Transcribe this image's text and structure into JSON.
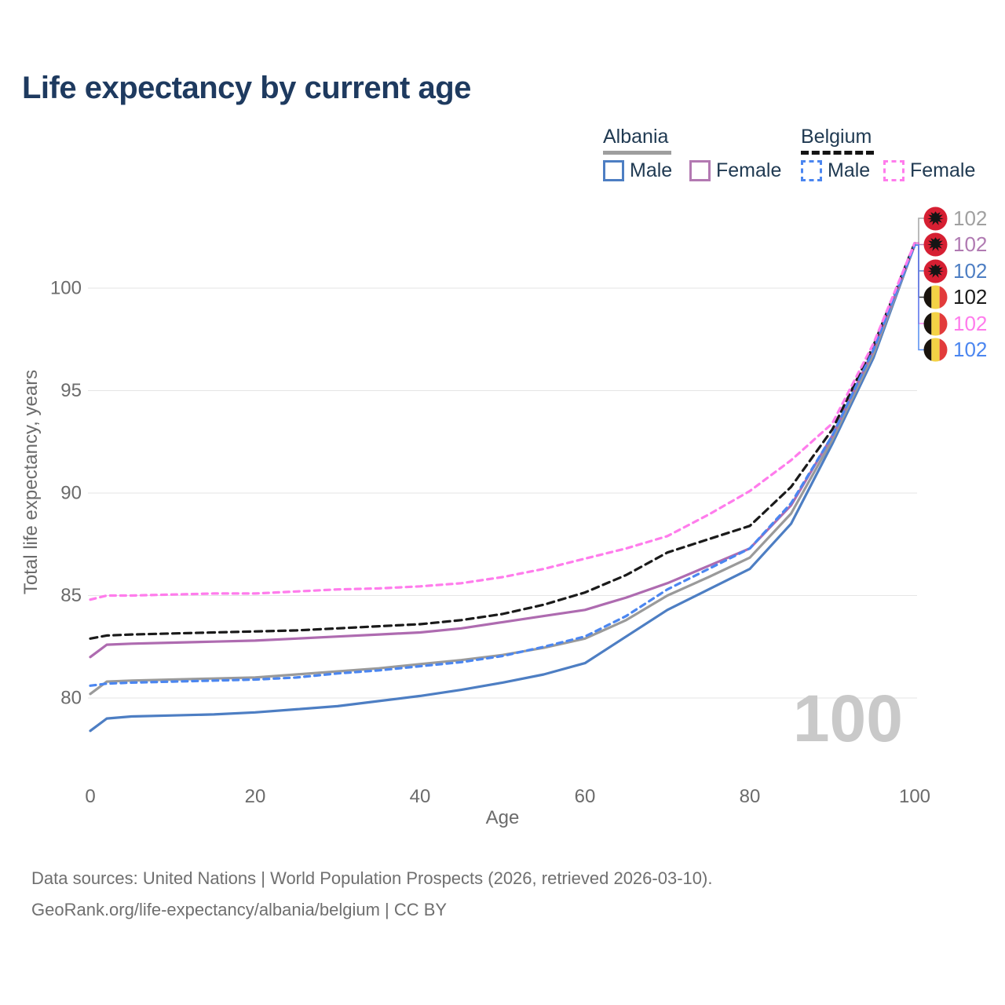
{
  "header": {
    "title": "Life expectancy by current age"
  },
  "legend": {
    "groups": [
      {
        "country": "Albania",
        "line_style": "solid",
        "items": [
          {
            "label": "Male",
            "color": "#4d7ec3"
          },
          {
            "label": "Female",
            "color": "#b379b2"
          }
        ]
      },
      {
        "country": "Belgium",
        "line_style": "dashed",
        "items": [
          {
            "label": "Male",
            "color": "#4b86f0"
          },
          {
            "label": "Female",
            "color": "#ff7cec"
          }
        ]
      }
    ]
  },
  "chart_data": {
    "type": "line",
    "title": "Life expectancy by current age",
    "xlabel": "Age",
    "ylabel": "Total life expectancy, years",
    "xlim": [
      0,
      100
    ],
    "ylim": [
      78,
      103
    ],
    "xticks": [
      0,
      20,
      40,
      60,
      80,
      100
    ],
    "yticks": [
      80,
      85,
      90,
      95,
      100
    ],
    "grid": "horizontal-only",
    "legend_position": "top-right",
    "x": [
      0,
      2,
      5,
      10,
      15,
      20,
      25,
      30,
      35,
      40,
      45,
      50,
      55,
      60,
      65,
      70,
      75,
      80,
      85,
      90,
      95,
      100
    ],
    "series": [
      {
        "name": "Albania Male",
        "country": "Albania",
        "sex": "male",
        "color": "#4d7ec3",
        "dash": "solid",
        "values": [
          78.4,
          79.0,
          79.1,
          79.15,
          79.2,
          79.3,
          79.45,
          79.6,
          79.85,
          80.1,
          80.4,
          80.75,
          81.15,
          81.7,
          83.0,
          84.3,
          85.3,
          86.3,
          88.5,
          92.4,
          96.6,
          102.1
        ]
      },
      {
        "name": "Albania Both sexes",
        "country": "Albania",
        "sex": "both",
        "color": "#9a9a9a",
        "dash": "solid",
        "values": [
          80.2,
          80.8,
          80.85,
          80.9,
          80.95,
          81.0,
          81.15,
          81.3,
          81.45,
          81.65,
          81.85,
          82.1,
          82.45,
          82.9,
          83.8,
          85.0,
          85.9,
          86.85,
          89.0,
          92.6,
          96.8,
          102.1
        ]
      },
      {
        "name": "Albania Female",
        "country": "Albania",
        "sex": "female",
        "color": "#ae6bb0",
        "dash": "solid",
        "values": [
          82.0,
          82.6,
          82.65,
          82.7,
          82.75,
          82.8,
          82.9,
          83.0,
          83.1,
          83.2,
          83.4,
          83.7,
          84.0,
          84.3,
          84.9,
          85.6,
          86.45,
          87.3,
          89.4,
          92.8,
          97.0,
          102.1
        ]
      },
      {
        "name": "Belgium Both sexes",
        "country": "Belgium",
        "sex": "both",
        "color": "#1a1a1a",
        "dash": "dashed",
        "values": [
          82.9,
          83.05,
          83.1,
          83.15,
          83.2,
          83.25,
          83.3,
          83.4,
          83.5,
          83.6,
          83.8,
          84.1,
          84.55,
          85.15,
          86.0,
          87.1,
          87.75,
          88.4,
          90.3,
          93.1,
          97.2,
          102.2
        ]
      },
      {
        "name": "Belgium Male",
        "country": "Belgium",
        "sex": "male",
        "color": "#4b86f0",
        "dash": "dashed",
        "values": [
          80.6,
          80.7,
          80.75,
          80.8,
          80.85,
          80.9,
          81.0,
          81.2,
          81.35,
          81.55,
          81.75,
          82.05,
          82.5,
          83.0,
          84.0,
          85.3,
          86.3,
          87.3,
          89.5,
          92.8,
          97.0,
          102.1
        ]
      },
      {
        "name": "Belgium Female",
        "country": "Belgium",
        "sex": "female",
        "color": "#ff7cec",
        "dash": "dashed",
        "values": [
          84.8,
          85.0,
          85.0,
          85.05,
          85.1,
          85.1,
          85.2,
          85.3,
          85.35,
          85.45,
          85.6,
          85.9,
          86.3,
          86.8,
          87.3,
          87.9,
          88.95,
          90.1,
          91.6,
          93.4,
          97.3,
          102.2
        ]
      }
    ]
  },
  "end_labels": [
    {
      "flag": "albania-flag",
      "series": "Albania Both sexes",
      "value": "102",
      "color": "#a0a0a0"
    },
    {
      "flag": "albania-flag",
      "series": "Albania Female",
      "value": "102",
      "color": "#b07ab2"
    },
    {
      "flag": "albania-flag",
      "series": "Albania Male",
      "value": "102",
      "color": "#4d7ec3"
    },
    {
      "flag": "belgium-flag",
      "series": "Belgium Both sexes",
      "value": "102",
      "color": "#1a1a1a"
    },
    {
      "flag": "belgium-flag",
      "series": "Belgium Female",
      "value": "102",
      "color": "#ff7cec"
    },
    {
      "flag": "belgium-flag",
      "series": "Belgium Male",
      "value": "102",
      "color": "#4b86f0"
    }
  ],
  "watermark": "100",
  "footer": {
    "line1": "Data sources: United Nations | World Population Prospects (2026, retrieved 2026-03-10).",
    "line2": "GeoRank.org/life-expectancy/albania/belgium | CC BY"
  }
}
